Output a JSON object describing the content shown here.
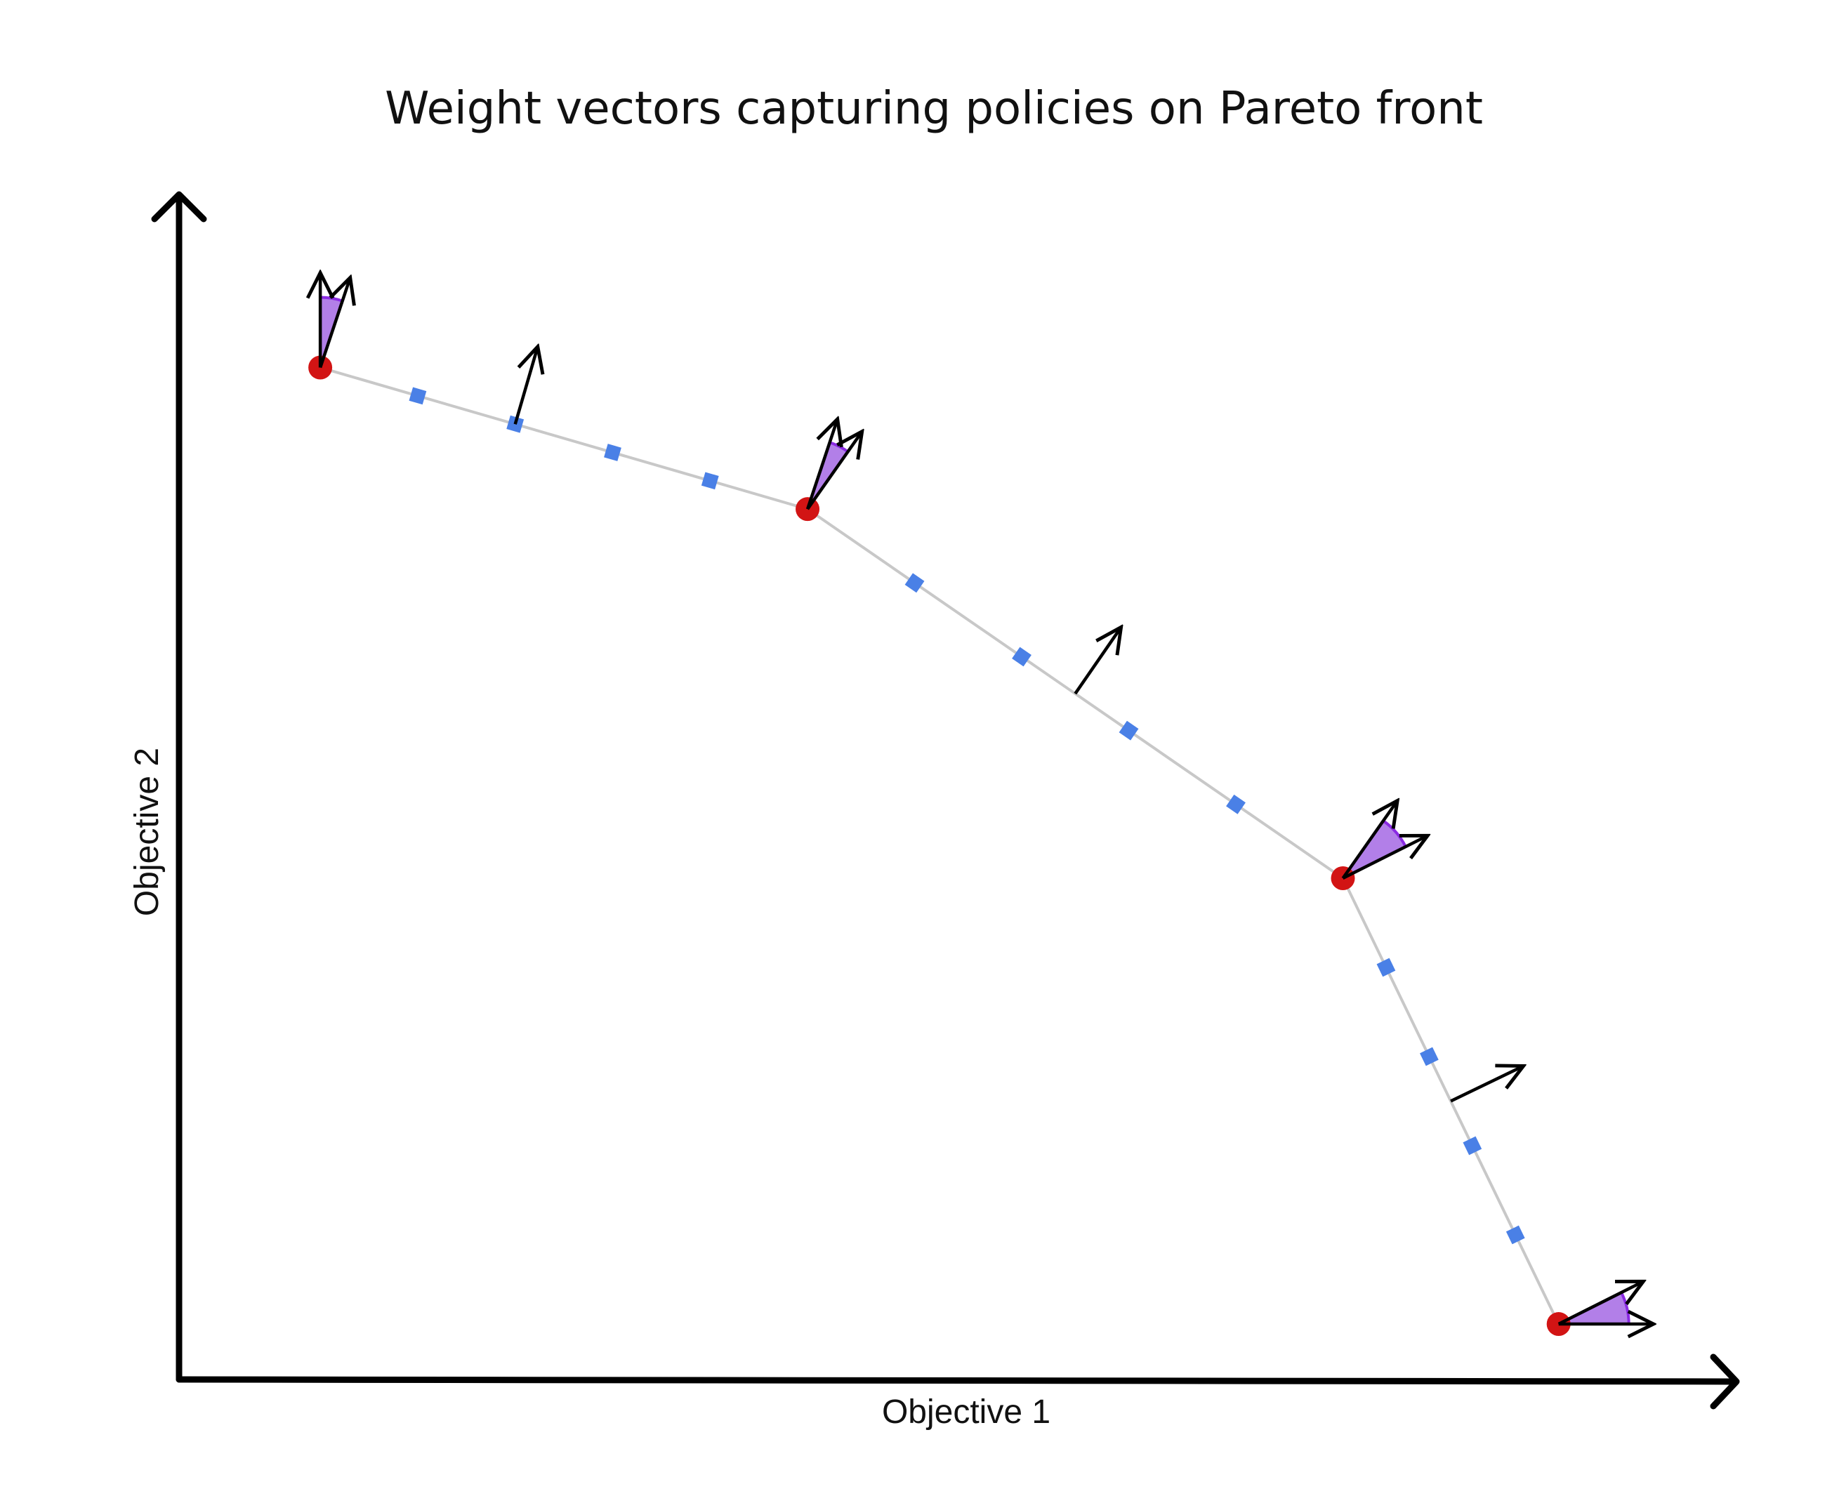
{
  "title": "Weight vectors capturing policies on Pareto front",
  "axes": {
    "x_label": "Objective 1",
    "y_label": "Objective 2"
  },
  "colors": {
    "axis": "#000000",
    "front_line": "#c8c8c8",
    "vertex": "#d21414",
    "segment_sample": "#4a80e6",
    "wedge_fill": "#b27fe8",
    "wedge_edge": "#8a2be2",
    "arrow": "#000000"
  },
  "front": {
    "vertices": [
      {
        "obj1": 0.091,
        "obj2": 0.858
      },
      {
        "obj1": 0.405,
        "obj2": 0.738
      },
      {
        "obj1": 0.75,
        "obj2": 0.425
      },
      {
        "obj1": 0.889,
        "obj2": 0.047
      }
    ],
    "samples_per_segment": 4,
    "segment_arrow_sample_index": 1
  },
  "weight_cones": [
    {
      "vertex": 0,
      "angle_from_deg": 71.6,
      "angle_to_deg": 90.0
    },
    {
      "vertex": 1,
      "angle_from_deg": 54.9,
      "angle_to_deg": 71.6
    },
    {
      "vertex": 2,
      "angle_from_deg": 26.7,
      "angle_to_deg": 54.9
    },
    {
      "vertex": 3,
      "angle_from_deg": 0.0,
      "angle_to_deg": 26.7
    }
  ]
}
